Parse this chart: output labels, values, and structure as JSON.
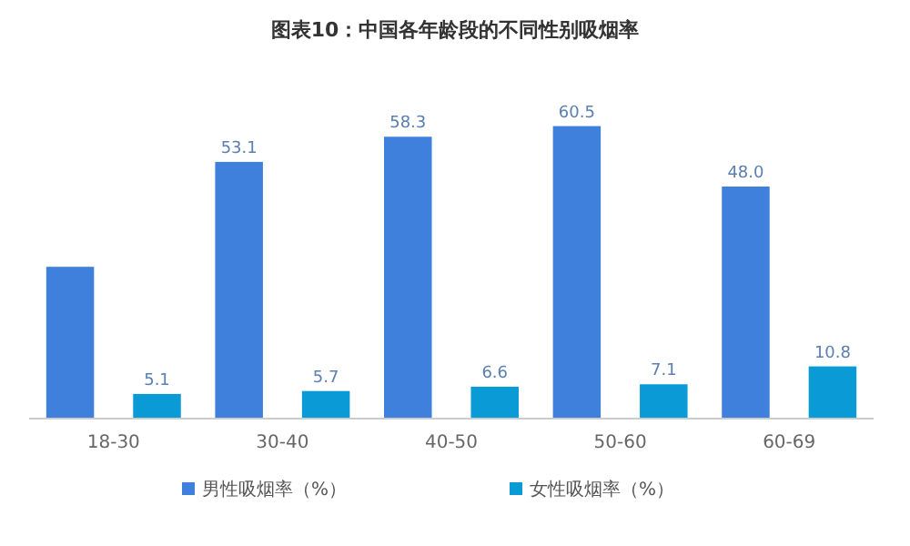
{
  "chart_data": {
    "type": "bar",
    "title": "图表10：中国各年龄段的不同性别吸烟率",
    "categories": [
      "18-30",
      "30-40",
      "40-50",
      "50-60",
      "60-69"
    ],
    "series": [
      {
        "name": "男性吸烟率（%）",
        "color": "#3f80dc",
        "values": [
          31.4,
          53.1,
          58.3,
          60.5,
          48.0
        ],
        "value_labels": [
          null,
          "53.1",
          "58.3",
          "60.5",
          "48.0"
        ]
      },
      {
        "name": "女性吸烟率（%）",
        "color": "#0a9bd6",
        "values": [
          5.1,
          5.7,
          6.6,
          7.1,
          10.8
        ],
        "value_labels": [
          "5.1",
          "5.7",
          "6.6",
          "7.1",
          "10.8"
        ]
      }
    ],
    "legend": "bottom"
  }
}
